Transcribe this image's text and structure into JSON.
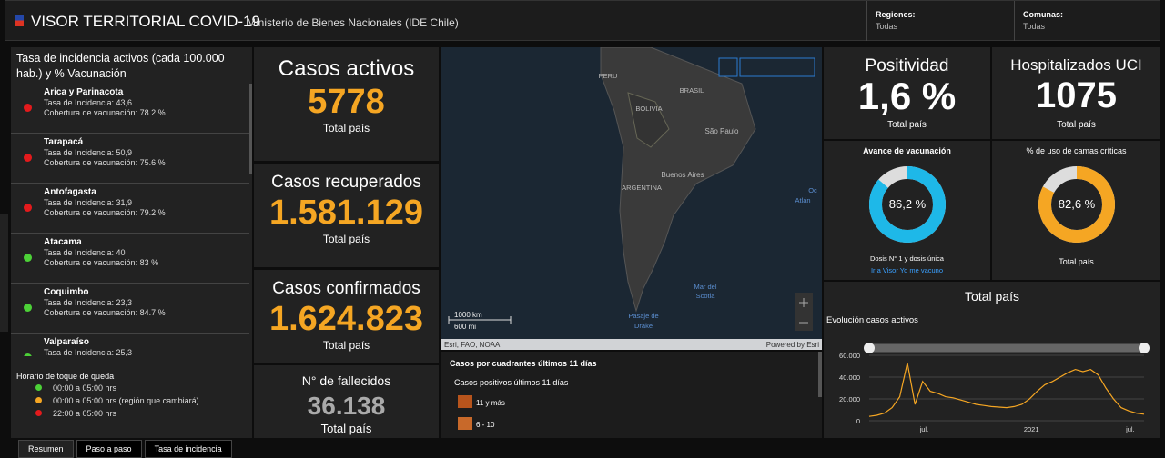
{
  "header": {
    "title": "VISOR TERRITORIAL COVID-19",
    "subtitle": "Ministerio de Bienes Nacionales (IDE Chile)",
    "filters": [
      {
        "label": "Regiones:",
        "value": "Todas"
      },
      {
        "label": "Comunas:",
        "value": "Todas"
      }
    ]
  },
  "left_panel": {
    "title": "Tasa de incidencia activos (cada 100.000 hab.) y % Vacunación",
    "regions": [
      {
        "name": "Arica y Parinacota",
        "incidence": "Tasa de Incidencia: 43,6",
        "coverage": "Cobertura de vacunación: 78.2 %",
        "color": "#e31a1c"
      },
      {
        "name": "Tarapacá",
        "incidence": "Tasa de Incidencia: 50,9",
        "coverage": "Cobertura de vacunación: 75.6 %",
        "color": "#e31a1c"
      },
      {
        "name": "Antofagasta",
        "incidence": "Tasa de Incidencia: 31,9",
        "coverage": "Cobertura de vacunación: 79.2 %",
        "color": "#e31a1c"
      },
      {
        "name": "Atacama",
        "incidence": "Tasa de Incidencia: 40",
        "coverage": "Cobertura de vacunación: 83 %",
        "color": "#4cd137"
      },
      {
        "name": "Coquimbo",
        "incidence": "Tasa de Incidencia: 23,3",
        "coverage": "Cobertura de vacunación: 84.7 %",
        "color": "#4cd137"
      },
      {
        "name": "Valparaíso",
        "incidence": "Tasa de Incidencia: 25,3",
        "coverage": "",
        "color": "#4cd137"
      }
    ],
    "curfew": {
      "title": "Horario de toque de queda",
      "items": [
        {
          "label": "00:00 a 05:00 hrs",
          "color": "#4cd137"
        },
        {
          "label": "00:00 a 05:00 hrs (región que cambiará)",
          "color": "#f5a623"
        },
        {
          "label": "22:00 a 05:00 hrs",
          "color": "#e31a1c"
        }
      ]
    }
  },
  "kpis": [
    {
      "title": "Casos activos",
      "value": "5778",
      "subtitle": "Total país",
      "color": "#f5a623"
    },
    {
      "title": "Casos recuperados",
      "value": "1.581.129",
      "subtitle": "Total país",
      "color": "#f5a623"
    },
    {
      "title": "Casos confirmados",
      "value": "1.624.823",
      "subtitle": "Total país",
      "color": "#f5a623"
    },
    {
      "title": "N° de fallecidos",
      "value": "36.138",
      "subtitle": "Total país",
      "color": "#aaaaaa"
    }
  ],
  "map": {
    "labels": [
      "PERU",
      "BRASIL",
      "BOLIVIA",
      "São Paulo",
      "Buenos Aires",
      "ARGENTINA",
      "Oc",
      "Atlán",
      "Mar del",
      "Scotia",
      "Pasaje de",
      "Drake"
    ],
    "scale": [
      "1000 km",
      "600 mi"
    ],
    "attribution": "Esri, FAO, NOAA",
    "powered": "Powered by Esri"
  },
  "quadrants": {
    "title": "Casos por cuadrantes últimos 11 días",
    "subtitle": "Casos positivos últimos 11 días",
    "legend": [
      "11 y más",
      "6 - 10"
    ]
  },
  "positivity": {
    "title": "Positividad",
    "value": "1,6 %",
    "subtitle": "Total país"
  },
  "uci": {
    "title": "Hospitalizados UCI",
    "value": "1075",
    "subtitle": "Total país"
  },
  "vaccination": {
    "title": "Avance de vacunación",
    "value": 86.2,
    "label": "86,2 %",
    "caption": "Dosis N° 1 y dosis única",
    "link": "Ir a Visor Yo me vacuno",
    "color": "#1eb8e8"
  },
  "beds": {
    "title": "% de uso de camas críticas",
    "value": 82.6,
    "label": "82,6 %",
    "caption": "Total país",
    "color": "#f5a623"
  },
  "trend": {
    "heading": "Total país",
    "title": "Evolución casos activos",
    "type": "line",
    "color": "#f5a623",
    "ylim": [
      0,
      65000
    ],
    "yticks": [
      {
        "value": 0,
        "label": "0"
      },
      {
        "value": 20000,
        "label": "20.000"
      },
      {
        "value": 40000,
        "label": "40.000"
      },
      {
        "value": 60000,
        "label": "60.000"
      }
    ],
    "xlabels": [
      "jul.",
      "2021",
      "jul."
    ],
    "values": [
      4000,
      5000,
      7000,
      12000,
      22000,
      53000,
      15000,
      36000,
      27000,
      25000,
      22000,
      21000,
      19000,
      17000,
      15000,
      14000,
      13000,
      12500,
      12000,
      13000,
      15000,
      20000,
      27000,
      33000,
      36000,
      40000,
      44000,
      47000,
      45000,
      47000,
      42000,
      30000,
      20000,
      12000,
      9000,
      7000,
      6000
    ]
  },
  "tabs": [
    "Resumen",
    "Paso a paso",
    "Tasa de incidencia"
  ]
}
